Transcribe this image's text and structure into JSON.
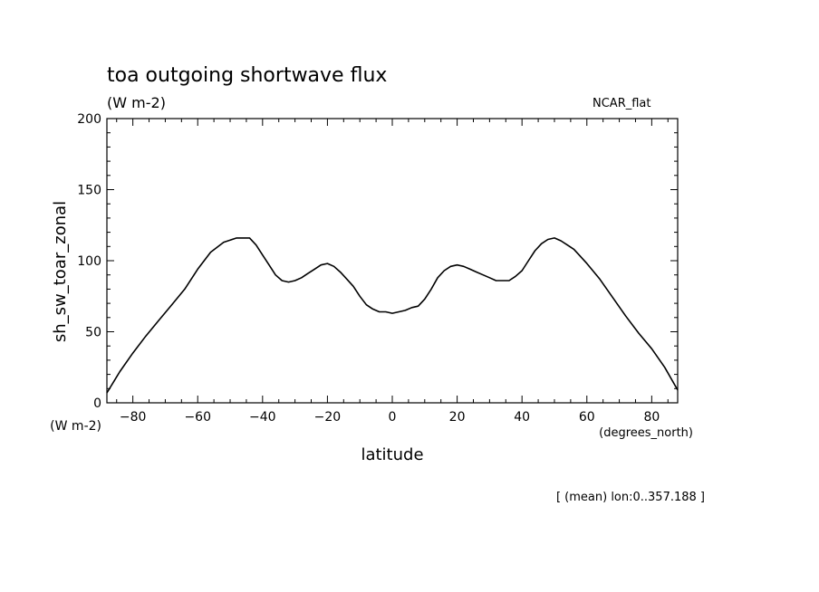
{
  "chart_data": {
    "type": "line",
    "title": "toa outgoing shortwave flux",
    "subtitle": "(W m-2)",
    "tag": "NCAR_flat",
    "xlabel": "latitude",
    "ylabel": "sh_sw_toar_zonal",
    "y_units": "(W m-2)",
    "x_units": "(degrees_north)",
    "footnote": "[ (mean) lon:0..357.188 ]",
    "xlim": [
      -88,
      88
    ],
    "ylim": [
      0,
      200
    ],
    "xticks": [
      -80,
      -60,
      -40,
      -20,
      0,
      20,
      40,
      60,
      80
    ],
    "yticks": [
      0,
      50,
      100,
      150,
      200
    ],
    "grid": false,
    "series": [
      {
        "x": [
          -88,
          -84,
          -80,
          -76,
          -72,
          -68,
          -64,
          -60,
          -56,
          -52,
          -48,
          -46,
          -44,
          -42,
          -40,
          -38,
          -36,
          -34,
          -32,
          -30,
          -28,
          -26,
          -24,
          -22,
          -20,
          -18,
          -16,
          -14,
          -12,
          -10,
          -8,
          -6,
          -4,
          -2,
          0,
          2,
          4,
          6,
          8,
          10,
          12,
          14,
          16,
          18,
          20,
          22,
          24,
          26,
          28,
          30,
          32,
          34,
          36,
          38,
          40,
          42,
          44,
          46,
          48,
          50,
          52,
          54,
          56,
          60,
          64,
          68,
          72,
          76,
          80,
          84,
          88
        ],
        "values": [
          7,
          22,
          35,
          47,
          58,
          69,
          80,
          94,
          106,
          113,
          116,
          116,
          116,
          111,
          104,
          97,
          90,
          86,
          85,
          86,
          88,
          91,
          94,
          97,
          98,
          96,
          92,
          87,
          82,
          75,
          69,
          66,
          64,
          64,
          63,
          64,
          65,
          67,
          68,
          73,
          80,
          88,
          93,
          96,
          97,
          96,
          94,
          92,
          90,
          88,
          86,
          86,
          86,
          89,
          93,
          100,
          107,
          112,
          115,
          116,
          114,
          111,
          108,
          98,
          87,
          74,
          61,
          49,
          38,
          25,
          9
        ]
      }
    ]
  }
}
